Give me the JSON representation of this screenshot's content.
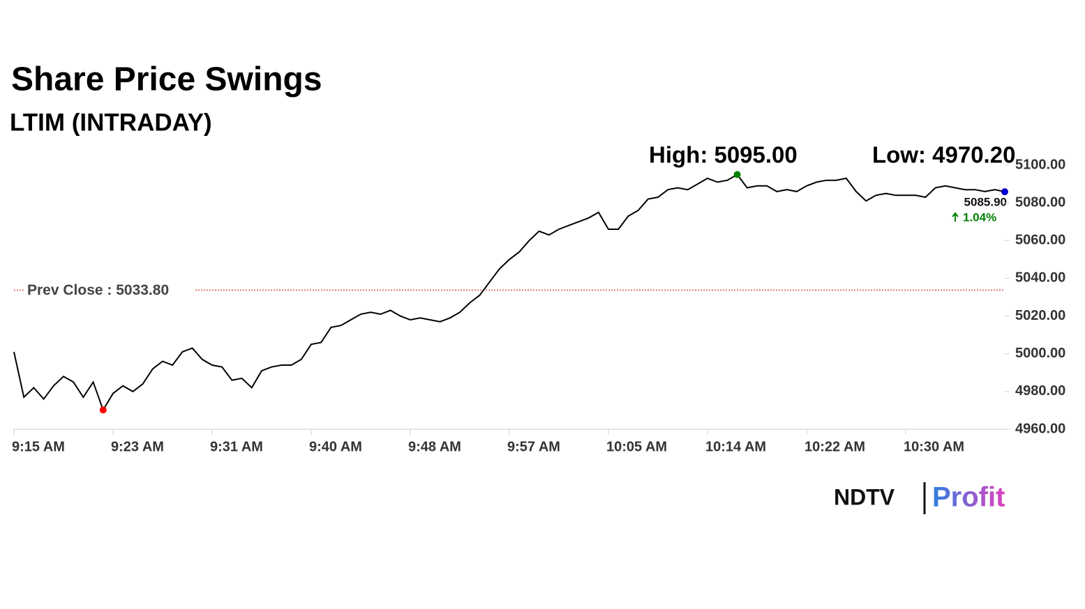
{
  "chart_data": {
    "type": "line",
    "title": "Share Price Swings",
    "subtitle": "LTIM (INTRADAY)",
    "categories": [
      "9:15 AM",
      null,
      null,
      null,
      null,
      null,
      null,
      null,
      null,
      null,
      "9:23 AM",
      null,
      null,
      null,
      null,
      null,
      null,
      null,
      null,
      null,
      "9:31 AM",
      null,
      null,
      null,
      null,
      null,
      null,
      null,
      null,
      null,
      "9:40 AM",
      null,
      null,
      null,
      null,
      null,
      null,
      null,
      null,
      null,
      "9:48 AM",
      null,
      null,
      null,
      null,
      null,
      null,
      null,
      null,
      null,
      "9:57 AM",
      null,
      null,
      null,
      null,
      null,
      null,
      null,
      null,
      null,
      "10:05 AM",
      null,
      null,
      null,
      null,
      null,
      null,
      null,
      null,
      null,
      "10:14 AM",
      null,
      null,
      null,
      null,
      null,
      null,
      null,
      null,
      null,
      "10:22 AM",
      null,
      null,
      null,
      null,
      null,
      null,
      null,
      null,
      null,
      "10:30 AM",
      null,
      null,
      null,
      null,
      null,
      null,
      null,
      null,
      null,
      null
    ],
    "values": [
      5001,
      4977,
      4982,
      4976,
      4983,
      4988,
      4985,
      4977,
      4985,
      4970.2,
      4979,
      4983,
      4980,
      4984,
      4992,
      4996,
      4994,
      5001,
      5003,
      4997,
      4994,
      4993,
      4986,
      4987,
      4982,
      4991,
      4993,
      4994,
      4994,
      4997,
      5005,
      5006,
      5014,
      5015,
      5018,
      5021,
      5022,
      5021,
      5023,
      5020,
      5018,
      5019,
      5018,
      5017,
      5019,
      5022,
      5027,
      5031,
      5038,
      5045,
      5050,
      5054,
      5060,
      5065,
      5063,
      5066,
      5068,
      5070,
      5072,
      5075,
      5066,
      5066,
      5073,
      5076,
      5082,
      5083,
      5087,
      5088,
      5087,
      5090,
      5093,
      5091,
      5092,
      5095,
      5088,
      5089,
      5089,
      5086,
      5087,
      5086,
      5089,
      5091,
      5092,
      5092,
      5093,
      5086,
      5081,
      5084,
      5085,
      5084,
      5084,
      5084,
      5083,
      5088,
      5089,
      5088,
      5087,
      5087,
      5086,
      5087,
      5085.9
    ],
    "color": "#000000",
    "ylim": [
      4960,
      5100
    ],
    "yticks": [
      {
        "value": 4960,
        "label": "4960.00"
      },
      {
        "value": 4980,
        "label": "4980.00"
      },
      {
        "value": 5000,
        "label": "5000.00"
      },
      {
        "value": 5020,
        "label": "5020.00"
      },
      {
        "value": 5040,
        "label": "5040.00"
      },
      {
        "value": 5060,
        "label": "5060.00"
      },
      {
        "value": 5080,
        "label": "5080.00"
      },
      {
        "value": 5100,
        "label": "5100.00"
      }
    ],
    "high": {
      "label": "High: 5095.00",
      "index": 73,
      "color": "#008000"
    },
    "low": {
      "label": "Low: 4970.20",
      "index": 9,
      "color": "#ff0000"
    },
    "last": {
      "label": "5085.90",
      "change": "1.04%",
      "index": 100,
      "color": "#0000cc"
    },
    "prev_close": {
      "label": "Prev Close : 5033.80",
      "value": 5033.8,
      "color": "#cc0000"
    },
    "logo": {
      "left": "NDTV",
      "right": "Profit"
    }
  }
}
